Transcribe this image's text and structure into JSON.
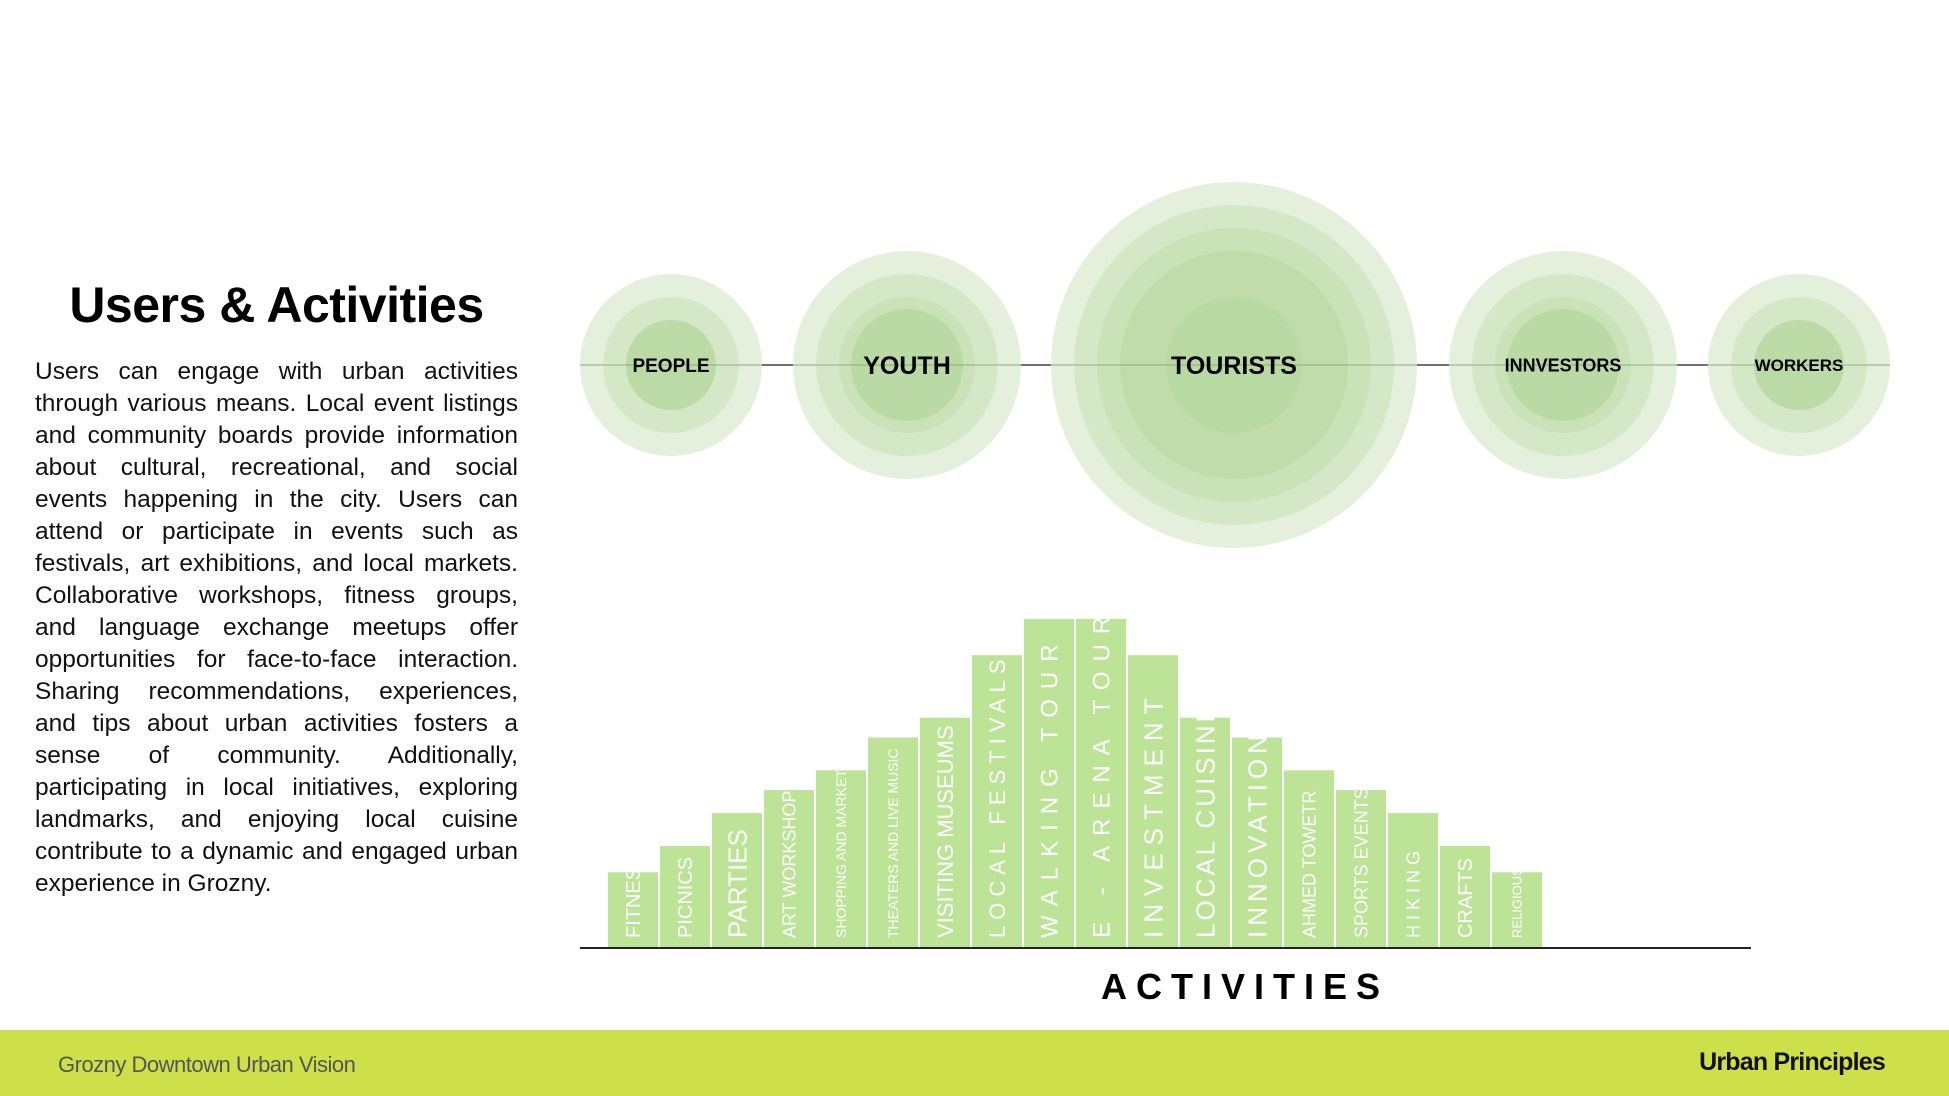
{
  "left_panel": {
    "title": "Users & Activities",
    "body": "Users  can engage with urban activities through various means. Local event listings and community boards provide information about cultural, recreational, and social events happening in the city. Users can attend or participate in events such as festivals, art exhibitions, and local markets. Collaborative workshops, fitness groups, and language exchange meetups offer opportunities for face-to-face interaction. Sharing recommendations, experiences, and tips about urban activities fosters a sense of community. Additionally, participating in local initiatives, exploring landmarks, and enjoying local cuisine contribute to a dynamic and engaged urban experience in Grozny."
  },
  "users": [
    {
      "label": "PEOPLE",
      "rings": 3
    },
    {
      "label": "YOUTH",
      "rings": 4
    },
    {
      "label": "TOURISTS",
      "rings": 5
    },
    {
      "label": "INNVESTORS",
      "rings": 4
    },
    {
      "label": "WORKERS",
      "rings": 3
    }
  ],
  "colors": {
    "bar": "#bde397",
    "ring_outer": "#e3efd9",
    "ring_inner": "#b9d8a2",
    "footer": "#cde04a"
  },
  "chart_data": {
    "type": "bar",
    "xlabel": "ACTIVITIES",
    "categories": [
      "FITNESS",
      "PICNICS",
      "PARTIES",
      "ART WORKSHOPS",
      "SHOPPING AND MARKETS",
      "THEATERS AND LIVE MUSIC",
      "VISITING MUSEUMS",
      "LOCAL FESTIVALS",
      "WALKING TOUR",
      "E - ARENA TOUR",
      "INVESTMENT",
      "LOCAL CUISINE",
      "INNOVATION",
      "AHMED TOWETR",
      "SPORTS EVENTS",
      "HIKING",
      "CRAFTS",
      "RELIGIOUS"
    ],
    "values": [
      2.3,
      3.1,
      4.1,
      4.8,
      5.4,
      6.4,
      7.0,
      8.9,
      10,
      10,
      8.9,
      7.0,
      6.4,
      5.4,
      4.8,
      4.1,
      3.1,
      2.3
    ]
  },
  "footer": {
    "left": "Grozny Downtown Urban Vision",
    "right": "Urban Principles"
  }
}
